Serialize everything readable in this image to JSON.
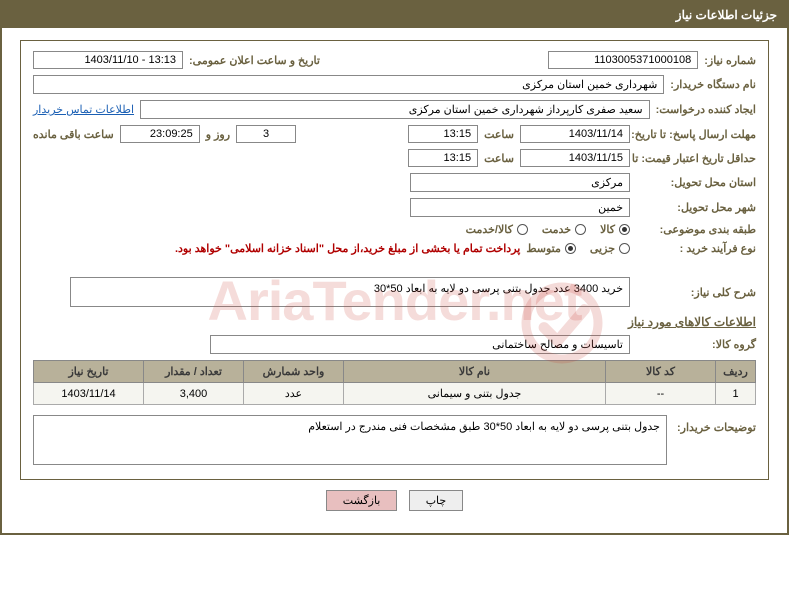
{
  "header": {
    "title": "جزئیات اطلاعات نیاز"
  },
  "need_number": {
    "label": "شماره نیاز:",
    "value": "1103005371000108"
  },
  "announce": {
    "label": "تاریخ و ساعت اعلان عمومی:",
    "value": "13:13 - 1403/11/10"
  },
  "buyer_org": {
    "label": "نام دستگاه خریدار:",
    "value": "شهرداری خمین استان مرکزی"
  },
  "requester": {
    "label": "ایجاد کننده درخواست:",
    "value": "سعید صفری کارپرداز شهرداری خمین استان مرکزی"
  },
  "contact_link": "اطلاعات تماس خریدار",
  "deadline_reply": {
    "label": "مهلت ارسال پاسخ: تا تاریخ:",
    "date": "1403/11/14",
    "time_label": "ساعت",
    "time": "13:15",
    "days": "3",
    "days_label": "روز و",
    "remain_time": "23:09:25",
    "remain_label": "ساعت باقی مانده"
  },
  "min_validity": {
    "label": "حداقل تاریخ اعتبار قیمت: تا تاریخ:",
    "date": "1403/11/15",
    "time_label": "ساعت",
    "time": "13:15"
  },
  "delivery_province": {
    "label": "استان محل تحویل:",
    "value": "مرکزی"
  },
  "delivery_city": {
    "label": "شهر محل تحویل:",
    "value": "خمین"
  },
  "subject_class": {
    "label": "طبقه بندی موضوعی:",
    "options": [
      {
        "label": "کالا",
        "checked": true
      },
      {
        "label": "خدمت",
        "checked": false
      },
      {
        "label": "کالا/خدمت",
        "checked": false
      }
    ]
  },
  "buy_process": {
    "label": "نوع فرآیند خرید :",
    "options": [
      {
        "label": "جزیی",
        "checked": false
      },
      {
        "label": "متوسط",
        "checked": true
      }
    ],
    "note": "پرداخت تمام یا بخشی از مبلغ خرید،از محل \"اسناد خزانه اسلامی\" خواهد بود."
  },
  "general_desc": {
    "label": "شرح کلی نیاز:",
    "value": "خرید 3400 عدد جدول بتنی پرسی دو لایه به ابعاد 50*30"
  },
  "section_goods": "اطلاعات کالاهای مورد نیاز",
  "goods_group": {
    "label": "گروه کالا:",
    "value": "تاسیسات و مصالح ساختمانی"
  },
  "table": {
    "columns": [
      "ردیف",
      "کد کالا",
      "نام کالا",
      "واحد شمارش",
      "تعداد / مقدار",
      "تاریخ نیاز"
    ],
    "rows": [
      [
        "1",
        "--",
        "جدول بتنی و سیمانی",
        "عدد",
        "3,400",
        "1403/11/14"
      ]
    ],
    "col_widths": [
      "40px",
      "110px",
      "auto",
      "100px",
      "100px",
      "110px"
    ]
  },
  "buyer_notes": {
    "label": "توضیحات خریدار:",
    "value": "جدول بتنی پرسی دو لایه به ابعاد 50*30 طبق مشخصات فنی مندرج در استعلام"
  },
  "buttons": {
    "print": "چاپ",
    "back": "بازگشت"
  },
  "watermark": "AriaTender.net",
  "colors": {
    "brand": "#6a6140",
    "note": "#b00000",
    "th_bg": "#b8b19a",
    "link": "#1a5fb4"
  }
}
